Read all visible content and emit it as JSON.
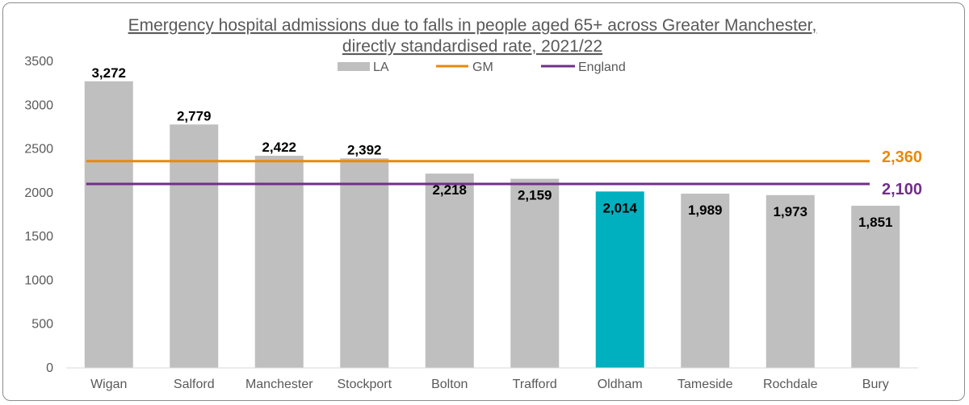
{
  "chart_data": {
    "type": "bar",
    "title_lines": [
      "Emergency hospital admissions due to falls in people aged 65+ across Greater Manchester,",
      "directly standardised rate, 2021/22"
    ],
    "categories": [
      "Wigan",
      "Salford",
      "Manchester",
      "Stockport",
      "Bolton",
      "Trafford",
      "Oldham",
      "Tameside",
      "Rochdale",
      "Bury"
    ],
    "series": [
      {
        "name": "LA",
        "values": [
          3272,
          2779,
          2422,
          2392,
          2218,
          2159,
          2014,
          1989,
          1973,
          1851
        ],
        "data_labels": [
          "3,272",
          "2,779",
          "2,422",
          "2,392",
          "2,218",
          "2,159",
          "2,014",
          "1,989",
          "1,973",
          "1,851"
        ],
        "color": "#bfbfbf",
        "highlight": {
          "category": "Oldham",
          "color": "#00b0bf"
        }
      }
    ],
    "reference_lines": [
      {
        "name": "GM",
        "value": 2360,
        "label": "2,360",
        "color": "#e8890c"
      },
      {
        "name": "England",
        "value": 2100,
        "label": "2,100",
        "color": "#702f8a"
      }
    ],
    "yticks": [
      "0",
      "500",
      "1000",
      "1500",
      "2000",
      "2500",
      "3000",
      "3500"
    ],
    "ylim": [
      0,
      3500
    ],
    "legend_position": "top-center",
    "grid": false
  }
}
